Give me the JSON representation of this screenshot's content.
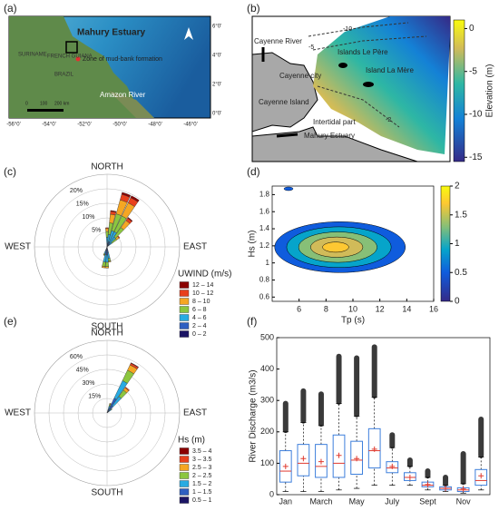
{
  "figure": {
    "panels": [
      "(a)",
      "(b)",
      "(c)",
      "(d)",
      "(e)",
      "(f)"
    ],
    "map_a": {
      "labels": [
        "Mahury Estuary",
        "Zone of mud-bank formation",
        "Amazon River",
        "FRENCH GUIANA",
        "SURINAME",
        "BRAZIL"
      ],
      "scale": [
        "0",
        "100",
        "200 km"
      ],
      "lon_ticks": [
        {
          "value": -56,
          "label": "-56°0'"
        },
        {
          "value": -54,
          "label": "-54°0'"
        },
        {
          "value": -52,
          "label": "-52°0'"
        },
        {
          "value": -50,
          "label": "-50°0'"
        },
        {
          "value": -48,
          "label": "-48°0'"
        },
        {
          "value": -46,
          "label": "-46°0'"
        }
      ],
      "lat_ticks": [
        {
          "value": 6,
          "label": "6°0'"
        },
        {
          "value": 4,
          "label": "4°0'"
        },
        {
          "value": 2,
          "label": "2°0'"
        },
        {
          "value": 0,
          "label": "0°0'"
        }
      ]
    },
    "map_b": {
      "labels": [
        "Cayenne River",
        "Cayenne city",
        "Cayenne Island",
        "Islands Le Père",
        "Island La Mère",
        "Intertidal part",
        "Mahury Estuary"
      ],
      "contour_labels": [
        "-10",
        "-5",
        "-2"
      ],
      "colorbar": {
        "lim": [
          -15.5,
          1
        ],
        "ticks": [
          0,
          -5,
          -10,
          -15
        ],
        "label": "Elevation (m)"
      }
    }
  },
  "chart_data": [
    {
      "type": "rose",
      "rlim": [
        0,
        25
      ],
      "rticks": [
        {
          "value": 5,
          "label": "5%"
        },
        {
          "value": 10,
          "label": "10%"
        },
        {
          "value": 15,
          "label": "15%"
        },
        {
          "value": 20,
          "label": "20%"
        }
      ],
      "compass": [
        "NORTH",
        "EAST",
        "SOUTH",
        "WEST"
      ],
      "legend_title": "UWIND (m/s)",
      "directions": [
        0,
        10,
        20,
        30,
        40,
        50,
        170,
        180,
        190,
        200
      ],
      "series": [
        {
          "name": "12 – 14",
          "color": "#8b0000",
          "values": [
            0,
            0.3,
            0.7,
            0.7,
            0.3,
            0,
            0,
            0,
            0,
            0
          ]
        },
        {
          "name": "10 – 12",
          "color": "#e8401c",
          "values": [
            0.3,
            1,
            2,
            2,
            1,
            0.3,
            0,
            0,
            0,
            0
          ]
        },
        {
          "name": "8 – 10",
          "color": "#f5a623",
          "values": [
            1,
            3,
            5,
            5,
            3,
            1,
            0.3,
            0.5,
            0.5,
            0.2
          ]
        },
        {
          "name": "6 – 8",
          "color": "#8cc63f",
          "values": [
            2,
            4,
            6,
            6,
            4,
            2,
            1,
            1.5,
            1.5,
            0.5
          ]
        },
        {
          "name": "4 – 6",
          "color": "#29abe2",
          "values": [
            2,
            3,
            4,
            4,
            3,
            1.5,
            2,
            2.5,
            2.5,
            1
          ]
        },
        {
          "name": "2 – 4",
          "color": "#2e5fc1",
          "values": [
            1,
            1,
            1.5,
            1.5,
            1,
            0.5,
            1.5,
            2,
            2,
            1
          ]
        },
        {
          "name": "0 – 2",
          "color": "#1b1464",
          "values": [
            0.3,
            0.3,
            0.3,
            0.3,
            0.2,
            0.1,
            0.5,
            0.8,
            0.8,
            0.4
          ]
        }
      ]
    },
    {
      "type": "contour",
      "xlabel": "Tp (s)",
      "ylabel": "Hs (m)",
      "xlim": [
        4,
        16
      ],
      "ylim": [
        0.55,
        1.9
      ],
      "xticks": [
        6,
        8,
        10,
        12,
        14,
        16
      ],
      "yticks": [
        0.6,
        0.8,
        1,
        1.2,
        1.4,
        1.6,
        1.8
      ],
      "clim": [
        0,
        2
      ],
      "cticks": [
        0,
        0.5,
        1,
        1.5,
        2
      ],
      "levels": [
        0.2,
        0.6,
        1,
        1.4,
        1.8
      ]
    },
    {
      "type": "rose",
      "rlim": [
        0,
        75
      ],
      "rticks": [
        {
          "value": 15,
          "label": "15%"
        },
        {
          "value": 30,
          "label": "30%"
        },
        {
          "value": 45,
          "label": "45%"
        },
        {
          "value": 60,
          "label": "60%"
        }
      ],
      "compass": [
        "NORTH",
        "EAST",
        "SOUTH",
        "WEST"
      ],
      "legend_title": "Hs (m)",
      "directions": [
        20,
        30,
        40,
        50
      ],
      "series": [
        {
          "name": "3.5 – 4",
          "color": "#8b0000",
          "values": [
            0,
            0.5,
            0,
            0
          ]
        },
        {
          "name": "3 – 3.5",
          "color": "#e8401c",
          "values": [
            0,
            2,
            1,
            0
          ]
        },
        {
          "name": "2.5 – 3",
          "color": "#f5a623",
          "values": [
            1,
            6,
            3,
            0
          ]
        },
        {
          "name": "2 – 2.5",
          "color": "#8cc63f",
          "values": [
            2,
            12,
            8,
            1
          ]
        },
        {
          "name": "1.5 – 2",
          "color": "#29abe2",
          "values": [
            4,
            20,
            12,
            3
          ]
        },
        {
          "name": "1 – 1.5",
          "color": "#2e5fc1",
          "values": [
            3,
            15,
            8,
            2
          ]
        },
        {
          "name": "0.5 – 1",
          "color": "#1b1464",
          "values": [
            0.5,
            2,
            1,
            0.5
          ]
        }
      ]
    },
    {
      "type": "box",
      "ylabel": "River Discharge (m3/s)",
      "ylim": [
        0,
        500
      ],
      "yticks": [
        0,
        100,
        200,
        300,
        400,
        500
      ],
      "categories": [
        "Jan",
        null,
        "March",
        null,
        "May",
        null,
        "July",
        null,
        "Sept",
        null,
        "Nov",
        null
      ],
      "min": [
        10,
        10,
        10,
        15,
        20,
        30,
        30,
        30,
        15,
        10,
        5,
        15
      ],
      "q1": [
        40,
        60,
        55,
        55,
        65,
        85,
        70,
        45,
        25,
        15,
        10,
        30
      ],
      "median": [
        75,
        100,
        90,
        100,
        110,
        140,
        85,
        55,
        30,
        20,
        15,
        45
      ],
      "q3": [
        140,
        160,
        160,
        190,
        170,
        210,
        105,
        70,
        40,
        25,
        22,
        80
      ],
      "max": [
        200,
        230,
        220,
        290,
        250,
        310,
        150,
        90,
        55,
        30,
        35,
        120
      ],
      "mean": [
        90,
        115,
        105,
        125,
        115,
        145,
        90,
        55,
        32,
        20,
        18,
        60
      ],
      "outliers_min": [
        205,
        235,
        225,
        295,
        255,
        315,
        155,
        95,
        60,
        35,
        40,
        125
      ],
      "outliers_max": [
        290,
        330,
        320,
        440,
        435,
        470,
        190,
        110,
        75,
        55,
        130,
        240
      ]
    }
  ]
}
